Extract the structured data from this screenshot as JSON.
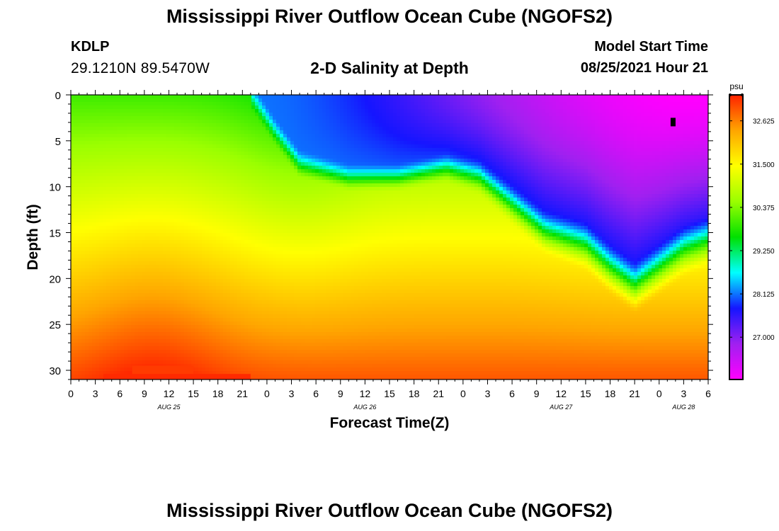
{
  "header": {
    "title": "Mississippi River Outflow Ocean Cube (NGOFS2)",
    "station": "KDLP",
    "coords": "29.1210N  89.5470W",
    "subtitle": "2-D Salinity at Depth",
    "model_start_label": "Model Start Time",
    "model_start_value": "08/25/2021 Hour 21"
  },
  "footer": {
    "title": "Mississippi River Outflow Ocean Cube (NGOFS2)"
  },
  "colors": {
    "colormap": [
      "#ff00ff",
      "#a020f0",
      "#1515ff",
      "#00ffff",
      "#00e000",
      "#9aff00",
      "#ffff00",
      "#ffa500",
      "#ff2200"
    ]
  },
  "chart_data": {
    "type": "heatmap",
    "xlabel": "Forecast Time(Z)",
    "ylabel": "Depth (ft)",
    "x_range_hours": [
      0,
      78
    ],
    "ylim": [
      0,
      31
    ],
    "y_ticks": [
      "0",
      "5",
      "10",
      "15",
      "20",
      "25",
      "30"
    ],
    "y_tick_values": [
      0,
      5,
      10,
      15,
      20,
      25,
      30
    ],
    "x_ticks": [
      "0",
      "3",
      "6",
      "9",
      "12",
      "15",
      "18",
      "21",
      "0",
      "3",
      "6",
      "9",
      "12",
      "15",
      "18",
      "21",
      "0",
      "3",
      "6",
      "9",
      "12",
      "15",
      "18",
      "21",
      "0",
      "3",
      "6"
    ],
    "date_labels": [
      {
        "text": "AUG 25",
        "hour": 12
      },
      {
        "text": "AUG 26",
        "hour": 36
      },
      {
        "text": "AUG 27",
        "hour": 60
      },
      {
        "text": "AUG 28",
        "hour": 75
      }
    ],
    "colorbar": {
      "unit": "psu",
      "min": 25.9,
      "max": 33.3,
      "ticks": [
        "32.625",
        "31.500",
        "30.375",
        "29.250",
        "28.125",
        "27.000"
      ],
      "tick_values": [
        32.625,
        31.5,
        30.375,
        29.25,
        28.125,
        27.0
      ]
    },
    "surface_layer": {
      "description_points": [
        {
          "hour": 0,
          "bottom_depth": 0
        },
        {
          "hour": 22,
          "bottom_depth": 0
        },
        {
          "hour": 25,
          "bottom_depth": 4
        },
        {
          "hour": 28,
          "bottom_depth": 7.5
        },
        {
          "hour": 34,
          "bottom_depth": 9
        },
        {
          "hour": 40,
          "bottom_depth": 9
        },
        {
          "hour": 46,
          "bottom_depth": 8
        },
        {
          "hour": 50,
          "bottom_depth": 9
        },
        {
          "hour": 54,
          "bottom_depth": 12
        },
        {
          "hour": 58,
          "bottom_depth": 15
        },
        {
          "hour": 63,
          "bottom_depth": 16.5
        },
        {
          "hour": 66,
          "bottom_depth": 19
        },
        {
          "hour": 69,
          "bottom_depth": 21
        },
        {
          "hour": 72,
          "bottom_depth": 19
        },
        {
          "hour": 75,
          "bottom_depth": 17
        },
        {
          "hour": 78,
          "bottom_depth": 16
        }
      ]
    }
  }
}
